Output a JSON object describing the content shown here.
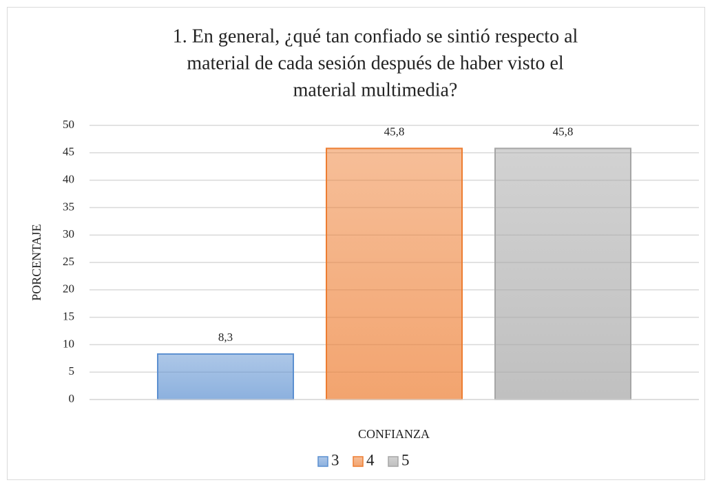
{
  "chart_data": {
    "type": "bar",
    "title": [
      "1.    En general, ¿qué tan confiado se sintió respecto al",
      "material  de cada sesión después de haber visto el",
      "material  multimedia?"
    ],
    "xlabel": "CONFIANZA",
    "ylabel": "PORCENTAJE",
    "categories": [
      null
    ],
    "series": [
      {
        "name": "3",
        "color": "#5b8fd0",
        "values": [
          8.3
        ],
        "value_labels": [
          "8,3"
        ]
      },
      {
        "name": "4",
        "color": "#ed7d31",
        "values": [
          45.8
        ],
        "value_labels": [
          "45,8"
        ]
      },
      {
        "name": "5",
        "color": "#a5a5a5",
        "values": [
          45.8
        ],
        "value_labels": [
          "45,8"
        ]
      }
    ],
    "ylim": [
      0,
      50
    ],
    "yticks": [
      0,
      5,
      10,
      15,
      20,
      25,
      30,
      35,
      40,
      45,
      50
    ],
    "grid": true,
    "legend": "bottom"
  }
}
